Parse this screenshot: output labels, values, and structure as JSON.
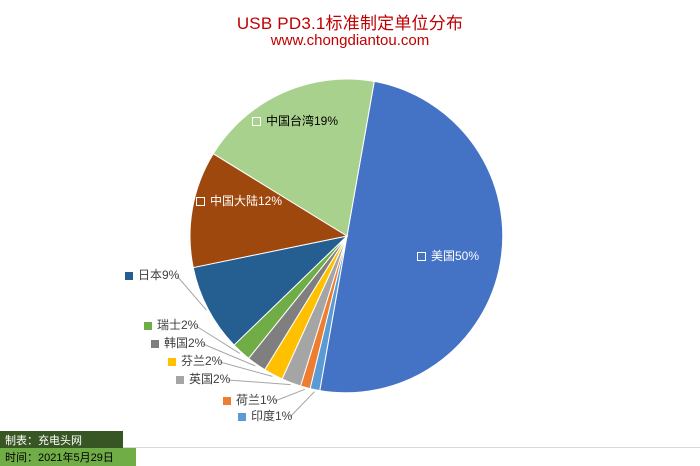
{
  "title": "USB PD3.1标准制定单位分布",
  "subtitle": "www.chongdiantou.com",
  "colors": {
    "title": "#C00000",
    "label_text": "#404040",
    "leader_line": "#A6A6A6",
    "slice_border": "#FFFFFF",
    "gridline": "#D9D9D9",
    "footer_maker_bg": "#375623",
    "footer_maker_text": "#FFFFFF",
    "footer_date_bg": "#70AD47",
    "footer_date_text": "#000000"
  },
  "chart_data": {
    "type": "pie",
    "title": "USB PD3.1标准制定单位分布",
    "subtitle": "www.chongdiantou.com",
    "unit": "percent",
    "start_angle_deg": 10,
    "direction": "clockwise",
    "legend_position": "none",
    "grid": false,
    "slices": [
      {
        "label": "美国",
        "value": 50,
        "display": "美国50%",
        "color": "#4472C4",
        "label_position": "inside",
        "text_color": "#FFFFFF"
      },
      {
        "label": "印度",
        "value": 1,
        "display": "印度1%",
        "color": "#5B9BD5",
        "label_position": "outside",
        "text_color": "#404040"
      },
      {
        "label": "荷兰",
        "value": 1,
        "display": "荷兰1%",
        "color": "#ED7D31",
        "label_position": "outside",
        "text_color": "#404040"
      },
      {
        "label": "英国",
        "value": 2,
        "display": "英国2%",
        "color": "#A5A5A5",
        "label_position": "outside",
        "text_color": "#404040"
      },
      {
        "label": "芬兰",
        "value": 2,
        "display": "芬兰2%",
        "color": "#FFC000",
        "label_position": "outside",
        "text_color": "#404040"
      },
      {
        "label": "韩国",
        "value": 2,
        "display": "韩国2%",
        "color": "#7F7F7F",
        "label_position": "outside",
        "text_color": "#404040"
      },
      {
        "label": "瑞士",
        "value": 2,
        "display": "瑞士2%",
        "color": "#70AD47",
        "label_position": "outside",
        "text_color": "#404040"
      },
      {
        "label": "日本",
        "value": 9,
        "display": "日本9%",
        "color": "#255E91",
        "label_position": "outside",
        "text_color": "#404040"
      },
      {
        "label": "中国大陆",
        "value": 12,
        "display": "中国大陆12%",
        "color": "#9E480E",
        "label_position": "inside",
        "text_color": "#FFFFFF"
      },
      {
        "label": "中国台湾",
        "value": 19,
        "display": "中国台湾19%",
        "color": "#A9D18E",
        "label_position": "inside",
        "text_color": "#000000"
      }
    ]
  },
  "footer": {
    "maker_label": "制表：充电头网",
    "date_label": "时间：2021年5月29日"
  }
}
